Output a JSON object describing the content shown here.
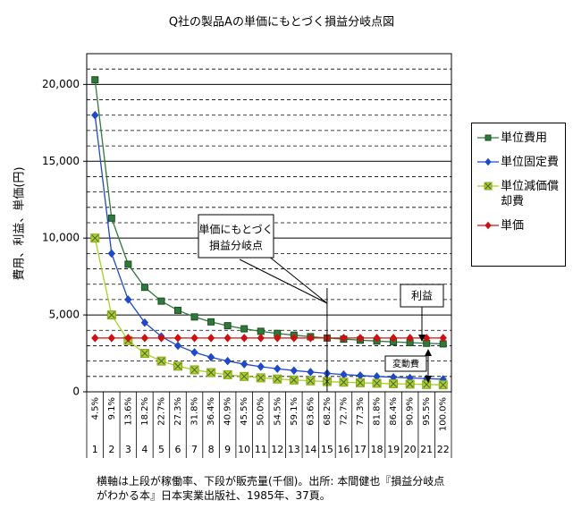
{
  "chart_data": {
    "type": "line",
    "title": "Q社の製品Aの単価にもとづく損益分岐点図",
    "ylabel": "費用、利益、単価(円)",
    "categories": [
      "1",
      "2",
      "3",
      "4",
      "5",
      "6",
      "7",
      "8",
      "9",
      "10",
      "11",
      "12",
      "13",
      "14",
      "15",
      "16",
      "17",
      "18",
      "19",
      "20",
      "21",
      "22"
    ],
    "utilization": [
      "4.5%",
      "9.1%",
      "13.6%",
      "18.2%",
      "22.7%",
      "27.3%",
      "31.8%",
      "36.4%",
      "40.9%",
      "45.5%",
      "50.0%",
      "54.5%",
      "59.1%",
      "63.6%",
      "68.2%",
      "72.7%",
      "77.3%",
      "81.8%",
      "86.4%",
      "90.9%",
      "95.5%",
      "100.0%"
    ],
    "series": [
      {
        "name": "単位費用",
        "color": "#2f7a3a",
        "marker": "square",
        "values": [
          20300,
          11300,
          8300,
          6800,
          5900,
          5300,
          4871,
          4550,
          4300,
          4100,
          3936,
          3800,
          3685,
          3586,
          3500,
          3425,
          3359,
          3300,
          3247,
          3200,
          3157,
          3118
        ]
      },
      {
        "name": "単位固定費",
        "color": "#1f49c9",
        "marker": "diamond",
        "values": [
          18000,
          9000,
          6000,
          4500,
          3600,
          3000,
          2571,
          2250,
          2000,
          1800,
          1636,
          1500,
          1385,
          1286,
          1200,
          1125,
          1059,
          1000,
          947,
          900,
          857,
          818
        ]
      },
      {
        "name": "単位減価償却費",
        "color": "#a6d421",
        "marker": "xsquare",
        "values": [
          10000,
          5000,
          3333,
          2500,
          2000,
          1667,
          1429,
          1250,
          1111,
          1000,
          909,
          833,
          769,
          714,
          667,
          625,
          588,
          556,
          526,
          500,
          476,
          455
        ]
      },
      {
        "name": "単価",
        "color": "#cc1111",
        "marker": "diamond",
        "values": [
          3500,
          3500,
          3500,
          3500,
          3500,
          3500,
          3500,
          3500,
          3500,
          3500,
          3500,
          3500,
          3500,
          3500,
          3500,
          3500,
          3500,
          3500,
          3500,
          3500,
          3500,
          3500
        ]
      }
    ],
    "ylim": [
      0,
      22000
    ],
    "yticks": [
      0,
      {
        "value": 5000,
        "label": "5,000"
      },
      {
        "value": 10000,
        "label": "10,000"
      },
      {
        "value": 15000,
        "label": "15,000"
      },
      {
        "value": 20000,
        "label": "20,000"
      }
    ],
    "minor_yticks": [
      1000,
      2000,
      3000,
      4000,
      6000,
      7000,
      8000,
      9000,
      11000,
      12000,
      13000,
      14000,
      16000,
      17000,
      18000,
      19000,
      21000,
      22000
    ],
    "grid": true,
    "legend": "right",
    "annotations": {
      "breakeven": [
        "単価にもとづく",
        "損益分岐点"
      ],
      "profit": "利益",
      "variable_cost": "変動費"
    },
    "footnote": "横軸は上段が稼働率、下段が販売量(千個)。出所: 本間健也『損益分岐点がわかる本』日本実業出版社、1985年、37頁。"
  }
}
